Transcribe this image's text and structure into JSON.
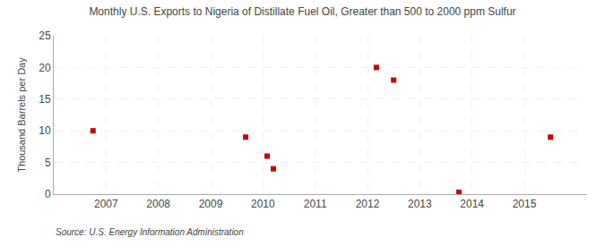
{
  "chart_data": {
    "type": "scatter",
    "title": "Monthly U.S. Exports to Nigeria of Distillate Fuel Oil, Greater than 500 to 2000 ppm Sulfur",
    "ylabel": "Thousand Barrels per Day",
    "annotations": [
      "Source: U.S. Energy Information Administration"
    ],
    "x": [
      2006.75,
      2009.67,
      2010.08,
      2010.2,
      2012.17,
      2012.5,
      2013.75,
      2015.5
    ],
    "values": [
      10.0,
      9.0,
      6.0,
      4.0,
      20.0,
      18.0,
      0.3,
      9.0
    ],
    "color": "#cc0000",
    "marker": "square",
    "xlim": [
      2006.0,
      2016.2
    ],
    "ylim": [
      0,
      25
    ],
    "xticks": [
      2007,
      2008,
      2009,
      2010,
      2011,
      2012,
      2013,
      2014,
      2015
    ],
    "yticks": [
      0,
      5,
      10,
      15,
      20,
      25
    ],
    "grid": true
  }
}
